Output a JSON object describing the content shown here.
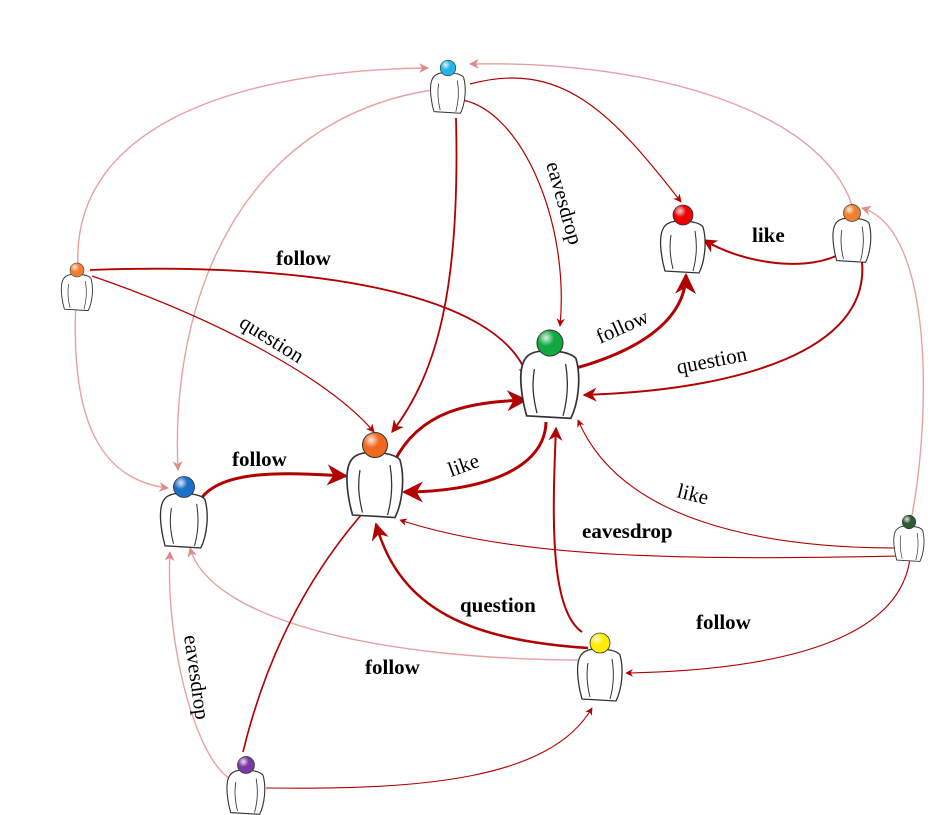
{
  "colors": {
    "edge_dark": "#b30000",
    "edge_light": "#e8a0a0",
    "node_colors": {
      "top": "#22b5e8",
      "red": "#ee0000",
      "orange_right": "#f08030",
      "orange_left": "#f08030",
      "green": "#11a840",
      "orange_center": "#f06820",
      "blue_left": "#1a70c8",
      "dark_green": "#2f5a2f",
      "yellow": "#ffee00",
      "purple": "#7a3aa0"
    }
  },
  "icon": "user-icon",
  "edge_labels": {
    "follow_1": "follow",
    "question_1": "question",
    "eavesdrop_1": "eavesdrop",
    "like_1": "like",
    "follow_2": "follow",
    "question_2": "question",
    "follow_3": "follow",
    "like_2": "like",
    "like_3": "like",
    "eavesdrop_2": "eavesdrop",
    "question_3": "question",
    "follow_4": "follow",
    "follow_5": "follow",
    "eavesdrop_3": "eavesdrop"
  }
}
